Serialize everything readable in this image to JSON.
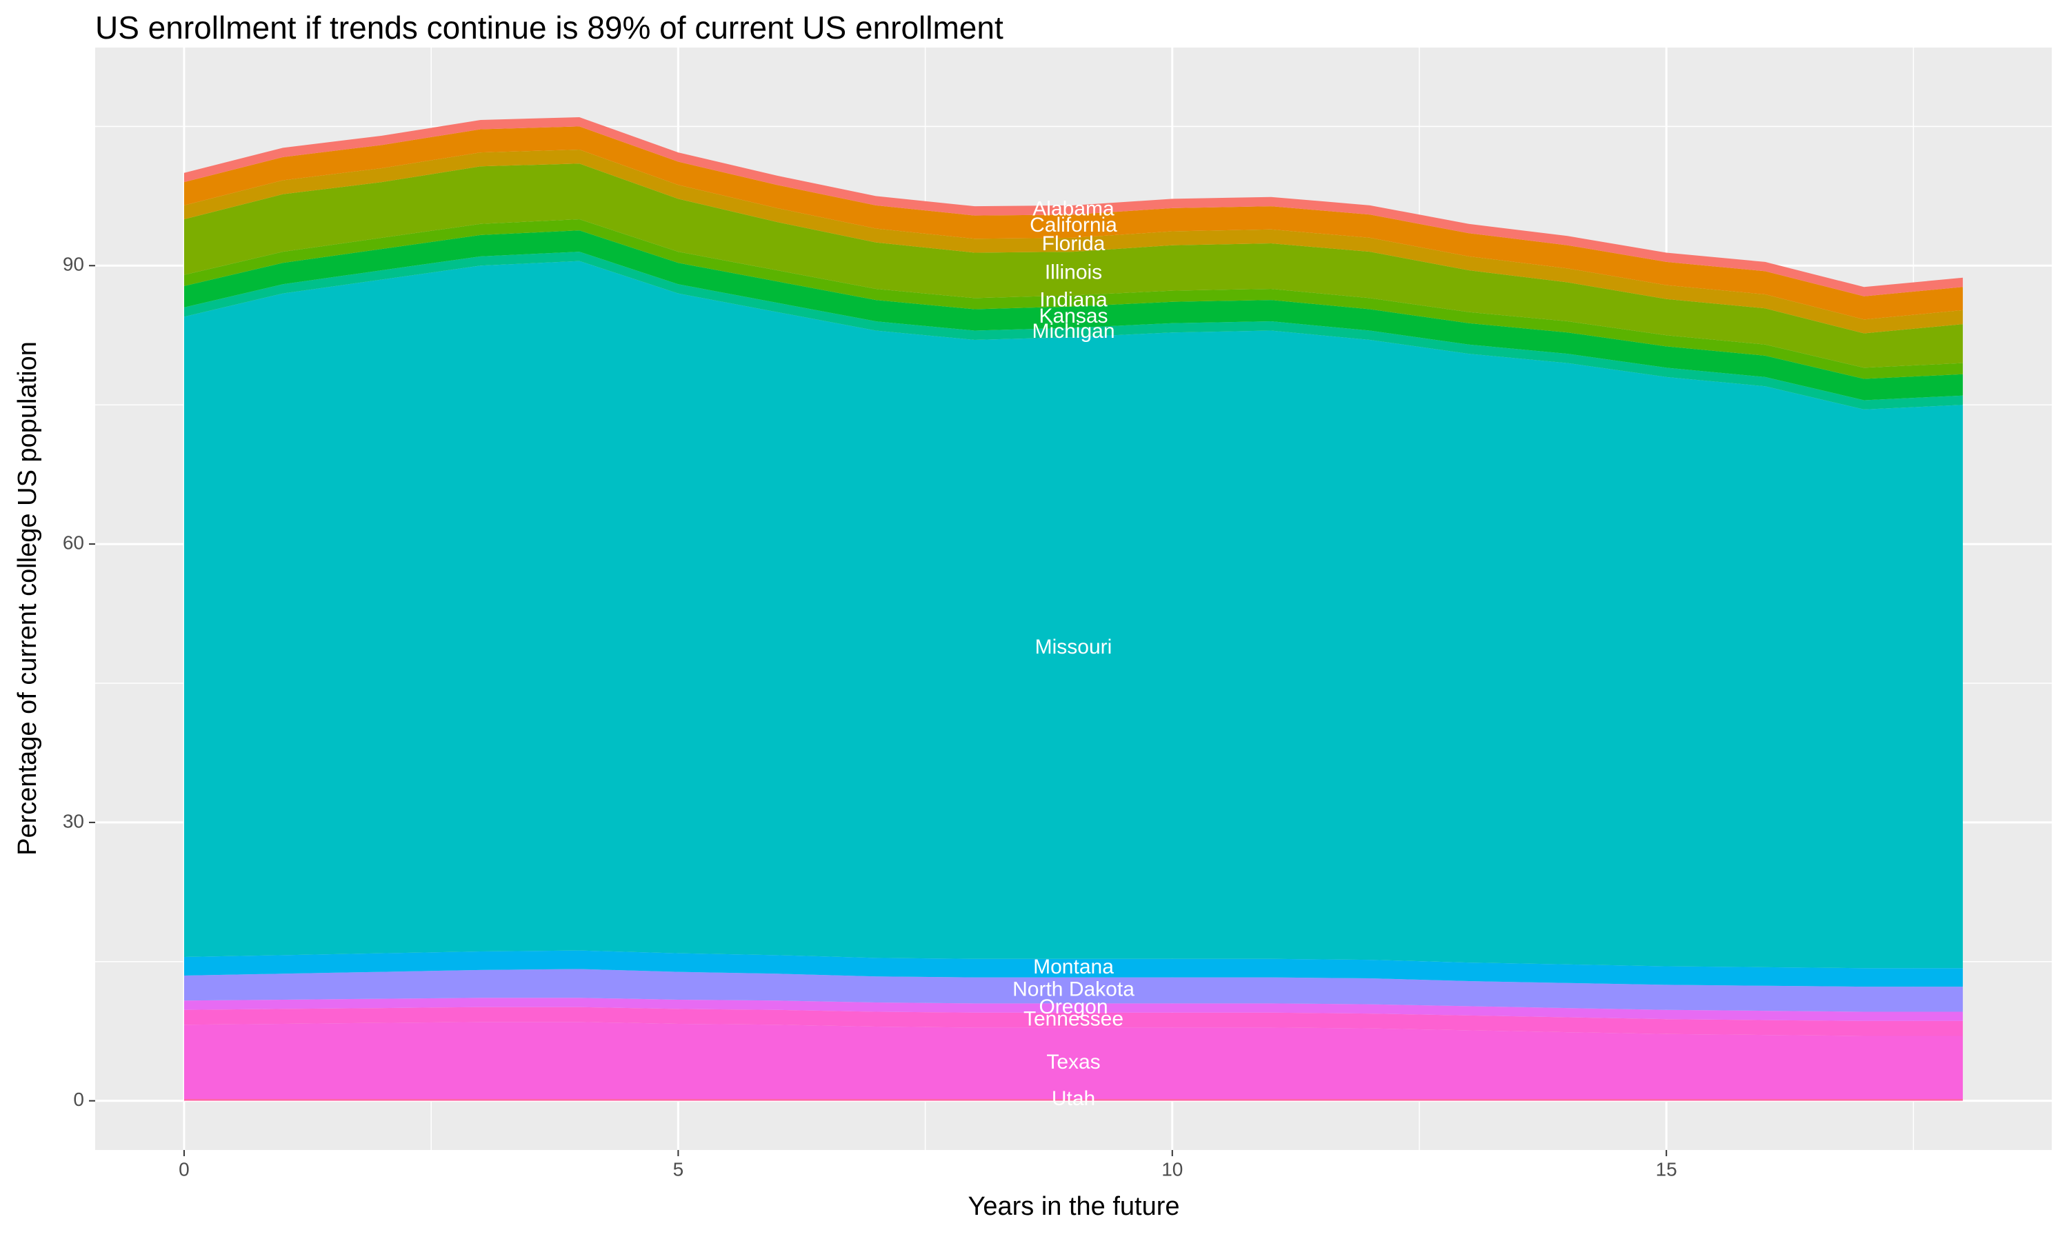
{
  "chart_data": {
    "type": "stacked_area",
    "title": "US enrollment if trends continue is 89% of current US enrollment",
    "x_label": "Years in the future",
    "y_label": "Percentage of current college US population",
    "x": [
      0,
      1,
      2,
      3,
      4,
      5,
      6,
      7,
      8,
      9,
      10,
      11,
      12,
      13,
      14,
      15,
      16,
      17,
      18
    ],
    "xlim": [
      -0.9,
      18.9
    ],
    "xticks": [
      0,
      5,
      10,
      15
    ],
    "ylim": [
      -5.3,
      113.5
    ],
    "yticks": [
      0,
      30,
      60,
      90
    ],
    "grid": true,
    "series": [
      {
        "name": "Alabama",
        "color": "#F8766D",
        "values": [
          1,
          1,
          1,
          1,
          1,
          1,
          1,
          1,
          1,
          1,
          1,
          1,
          1,
          1,
          1,
          1,
          1,
          1,
          1
        ]
      },
      {
        "name": "California",
        "color": "#E58700",
        "values": [
          2.5,
          2.5,
          2.5,
          2.5,
          2.5,
          2.5,
          2.5,
          2.5,
          2.5,
          2.5,
          2.5,
          2.5,
          2.5,
          2.5,
          2.5,
          2.5,
          2.5,
          2.5,
          2.5
        ]
      },
      {
        "name": "Florida",
        "color": "#C99800",
        "values": [
          1.5,
          1.5,
          1.5,
          1.5,
          1.5,
          1.5,
          1.5,
          1.5,
          1.5,
          1.5,
          1.5,
          1.5,
          1.5,
          1.5,
          1.5,
          1.5,
          1.5,
          1.5,
          1.5
        ]
      },
      {
        "name": "Illinois",
        "color": "#7CAE00",
        "values": [
          6.0,
          6.2,
          6.0,
          6.2,
          6.0,
          5.7,
          5.2,
          5.0,
          4.9,
          4.7,
          4.9,
          4.9,
          5.0,
          4.5,
          4.2,
          3.9,
          3.9,
          3.7,
          4.2
        ]
      },
      {
        "name": "Indiana",
        "color": "#5BB300",
        "values": [
          1.2,
          1.2,
          1.2,
          1.2,
          1.2,
          1.2,
          1.2,
          1.2,
          1.2,
          1.2,
          1.2,
          1.2,
          1.2,
          1.2,
          1.2,
          1.2,
          1.2,
          1.2,
          1.2
        ]
      },
      {
        "name": "Kansas",
        "color": "#00BA38",
        "values": [
          2.3,
          2.3,
          2.3,
          2.3,
          2.3,
          2.3,
          2.3,
          2.3,
          2.3,
          2.3,
          2.3,
          2.3,
          2.3,
          2.3,
          2.3,
          2.3,
          2.3,
          2.3,
          2.3
        ]
      },
      {
        "name": "Michigan",
        "color": "#00C08B",
        "values": [
          1,
          1,
          1,
          1,
          1,
          1,
          1,
          1,
          1,
          1,
          1,
          1,
          1,
          1,
          1,
          1,
          1,
          1,
          1
        ]
      },
      {
        "name": "Missouri",
        "color": "#00BFC4",
        "values": [
          69.0,
          71.3,
          72.6,
          73.9,
          74.3,
          71.1,
          69.3,
          67.6,
          66.7,
          67.0,
          67.5,
          67.7,
          66.8,
          65.6,
          64.8,
          63.5,
          62.6,
          60.2,
          60.7
        ]
      },
      {
        "name": "Montana",
        "color": "#00B4EF",
        "values": [
          2,
          2,
          2,
          2,
          2,
          2,
          2,
          2,
          2,
          2,
          2,
          2,
          2,
          2,
          2,
          2,
          2,
          2,
          2
        ]
      },
      {
        "name": "North Dakota",
        "color": "#9590FF",
        "values": [
          2.7,
          2.8,
          2.9,
          3.0,
          3.1,
          3.0,
          2.9,
          2.8,
          2.8,
          2.8,
          2.8,
          2.8,
          2.8,
          2.7,
          2.7,
          2.7,
          2.7,
          2.7,
          2.7
        ]
      },
      {
        "name": "Oregon",
        "color": "#E76BF3",
        "values": [
          1,
          1,
          1,
          1,
          1,
          1,
          1,
          1,
          1,
          1,
          1,
          1,
          1,
          1,
          1,
          1,
          1,
          1,
          1
        ]
      },
      {
        "name": "Tennessee",
        "color": "#FD61D1",
        "values": [
          1.6,
          1.6,
          1.6,
          1.6,
          1.6,
          1.6,
          1.6,
          1.6,
          1.6,
          1.6,
          1.6,
          1.6,
          1.6,
          1.6,
          1.6,
          1.6,
          1.6,
          1.6,
          1.6
        ]
      },
      {
        "name": "Texas",
        "color": "#F962DD",
        "values": [
          8.0,
          8.1,
          8.2,
          8.3,
          8.3,
          8.1,
          8.0,
          7.8,
          7.7,
          7.7,
          7.7,
          7.7,
          7.6,
          7.4,
          7.2,
          7.0,
          6.9,
          6.8,
          6.8
        ]
      },
      {
        "name": "Utah",
        "color": "#FF67A4",
        "values": [
          0.2,
          0.2,
          0.2,
          0.2,
          0.2,
          0.2,
          0.2,
          0.2,
          0.2,
          0.2,
          0.2,
          0.2,
          0.2,
          0.2,
          0.2,
          0.2,
          0.2,
          0.2,
          0.2
        ]
      }
    ]
  }
}
